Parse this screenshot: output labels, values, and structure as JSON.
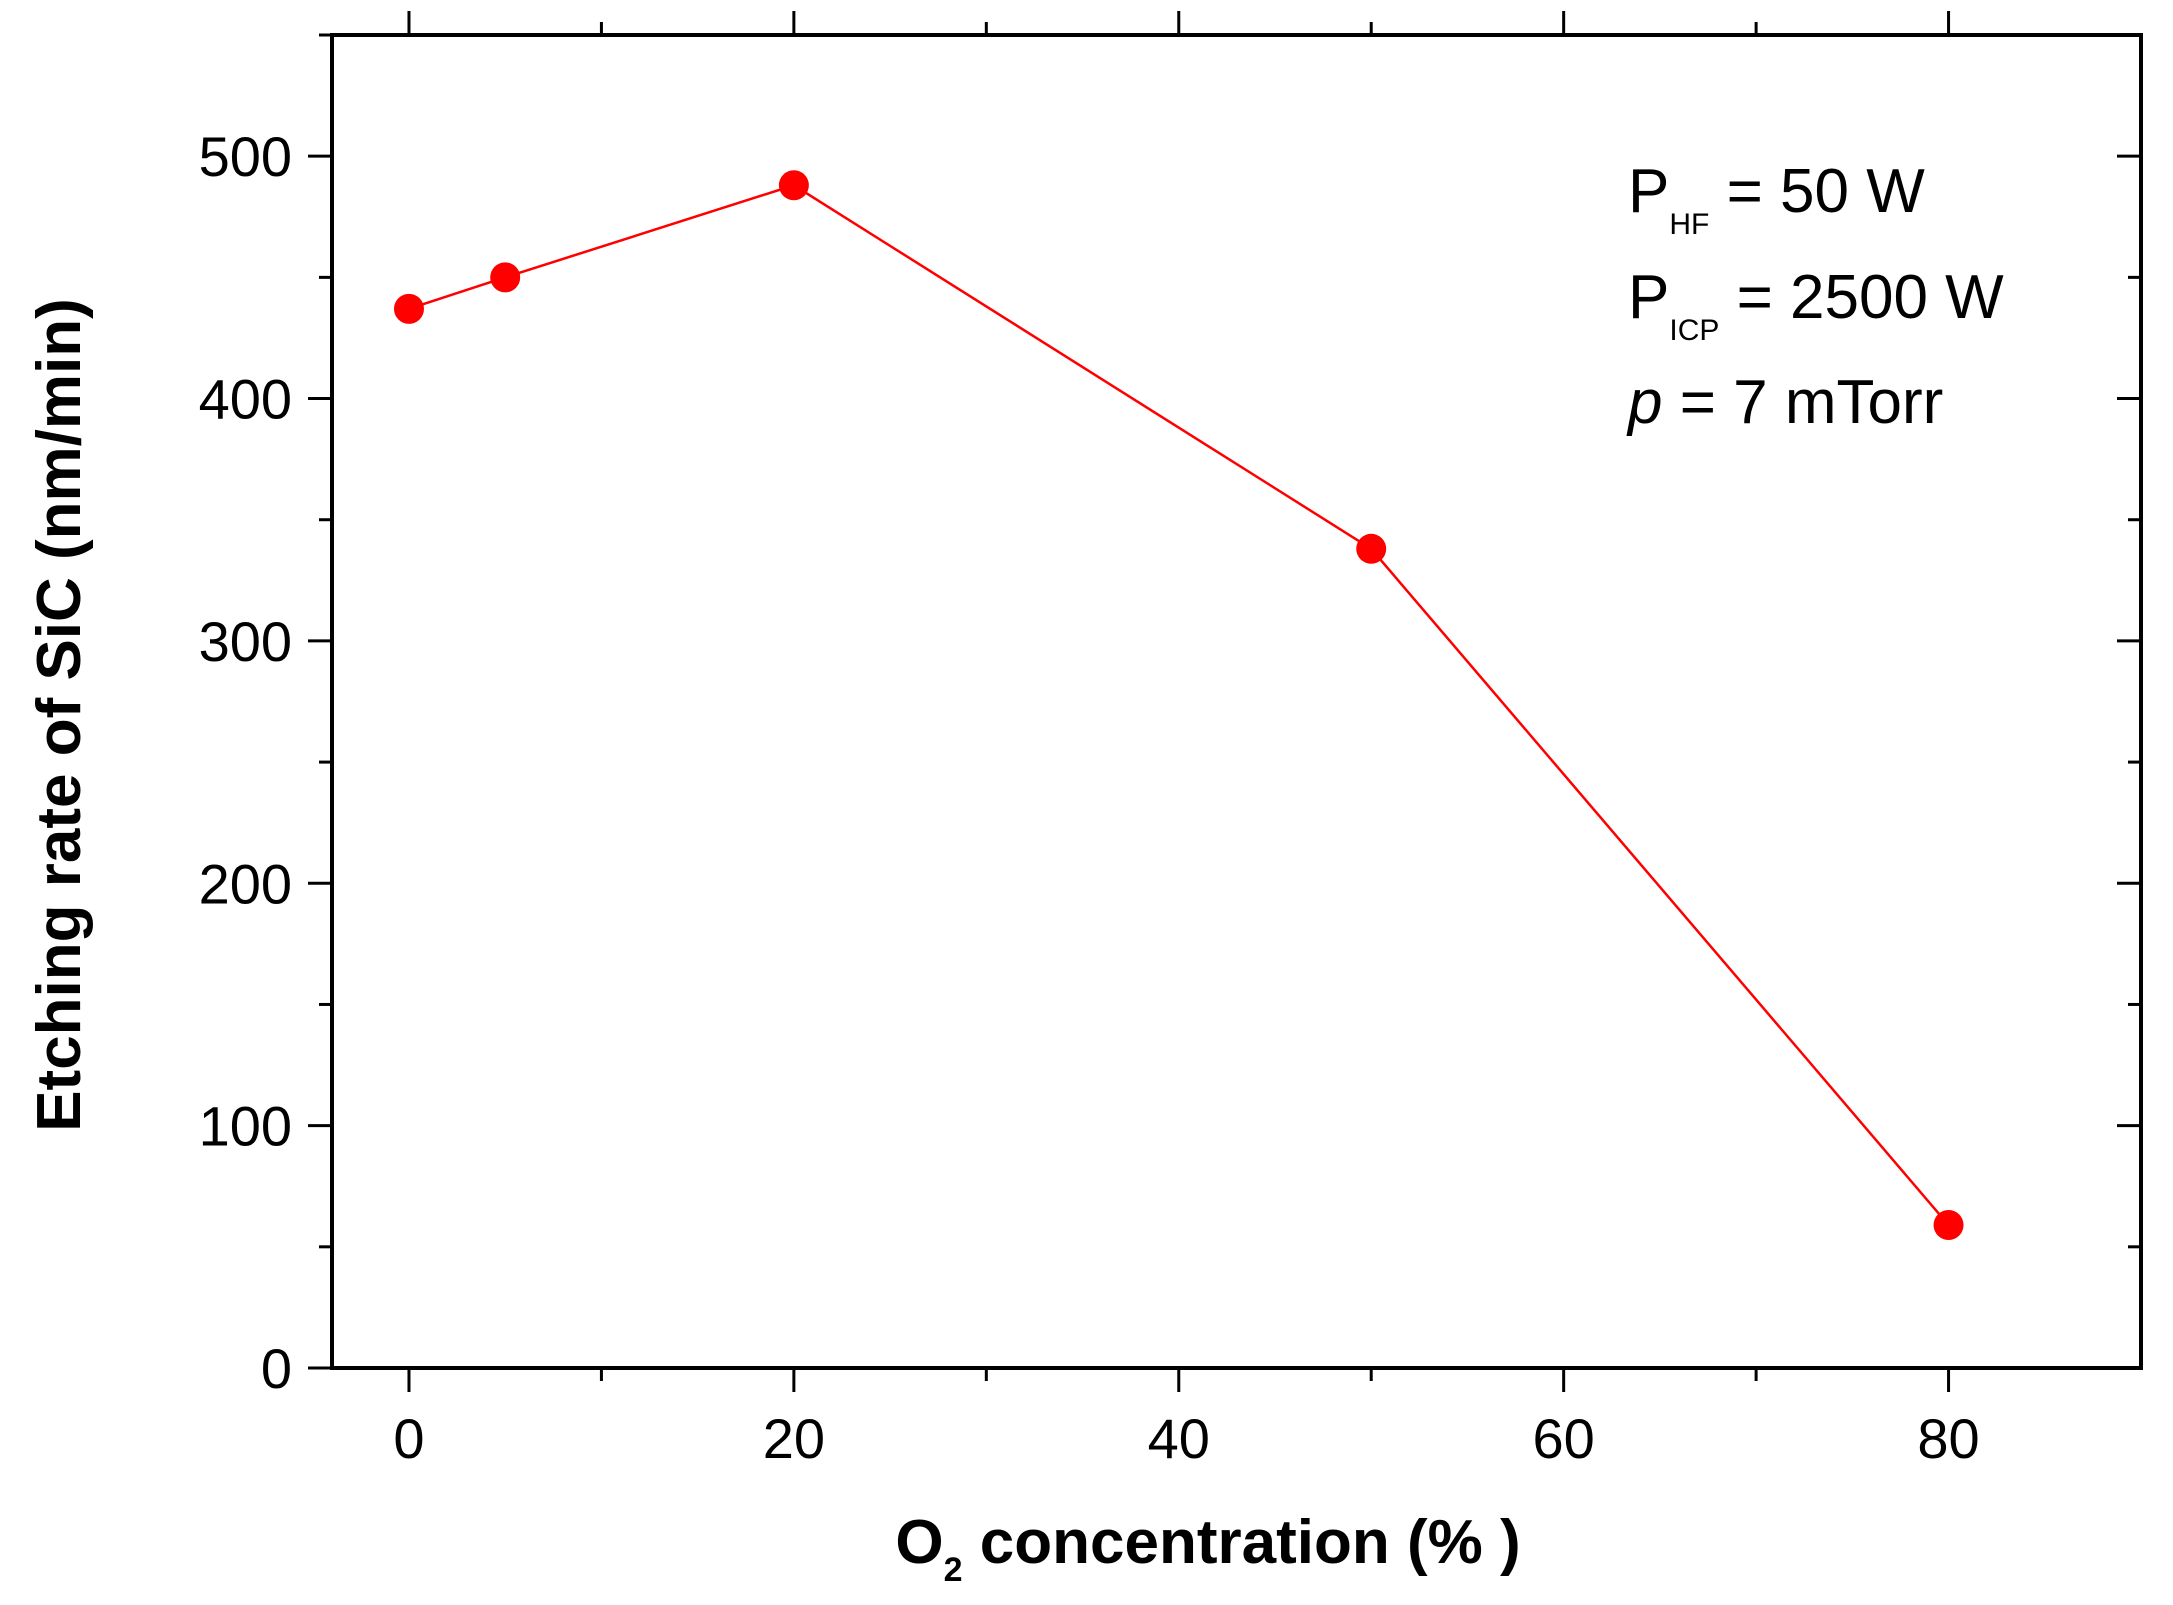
{
  "chart_data": {
    "type": "line",
    "title": "",
    "xlabel": {
      "main": "O",
      "sub": "2",
      "rest": " concentration (% )"
    },
    "ylabel": "Etching rate of SiC (nm/min)",
    "xlim": [
      -4,
      90
    ],
    "ylim": [
      0,
      550
    ],
    "xticks": [
      0,
      20,
      40,
      60,
      80
    ],
    "yticks": [
      0,
      100,
      200,
      300,
      400,
      500
    ],
    "grid": false,
    "series": [
      {
        "name": "Etching rate",
        "color": "#ff0000",
        "x": [
          0,
          5,
          20,
          50,
          80
        ],
        "y": [
          437,
          450,
          488,
          338,
          59
        ]
      }
    ],
    "annotations": [
      {
        "main": "P",
        "sub": "HF",
        "rest": " = 50 W",
        "italic": false
      },
      {
        "main": "P",
        "sub": "ICP",
        "rest": " = 2500 W",
        "italic": false
      },
      {
        "main": "p",
        "sub": "",
        "rest": " = 7 mTorr",
        "italic": true
      }
    ]
  }
}
